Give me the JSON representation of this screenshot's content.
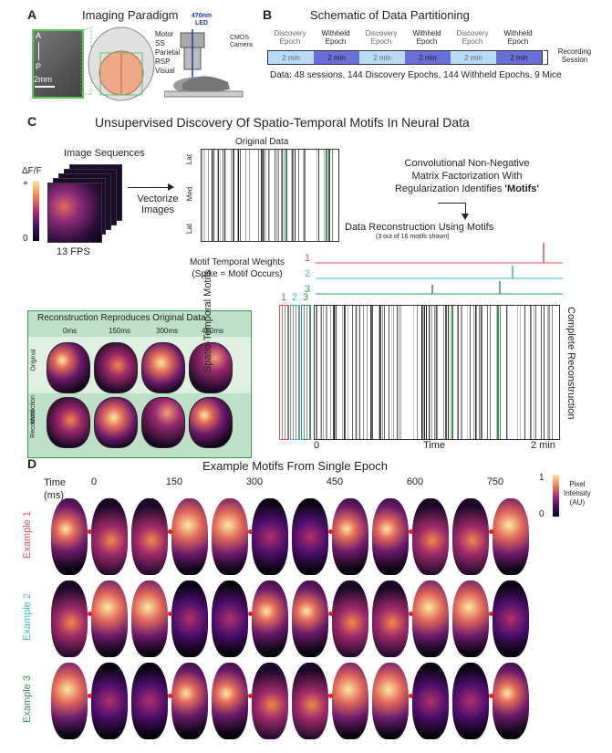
{
  "panelA": {
    "label": "A",
    "title": "Imaging Paradigm",
    "axis_a": "A",
    "axis_p": "P",
    "scale": "2mm",
    "regions": [
      "Motor",
      "SS",
      "Parietal",
      "RSP",
      "Visual"
    ],
    "led": "470nm LED",
    "camera": "CMOS Camera"
  },
  "panelB": {
    "label": "B",
    "title": "Schematic of Data Partitioning",
    "epochs": [
      {
        "name": "Discovery Epoch",
        "dur": "2 min",
        "kind": "discovery"
      },
      {
        "name": "Withheld Epoch",
        "dur": "2 min",
        "kind": "withheld"
      },
      {
        "name": "Discovery Epoch",
        "dur": "2 min",
        "kind": "discovery"
      },
      {
        "name": "Withheld Epoch",
        "dur": "2 min",
        "kind": "withheld"
      },
      {
        "name": "Discovery Epoch",
        "dur": "2 min",
        "kind": "discovery"
      },
      {
        "name": "Withheld Epoch",
        "dur": "2 min",
        "kind": "withheld"
      }
    ],
    "session": "Recording Session",
    "summary": "Data: 48 sessions, 144 Discovery Epochs, 144 Withheld Epochs, 9 Mice",
    "colors": {
      "discovery": "#b8dcf5",
      "withheld": "#6a6fd8"
    }
  },
  "panelC": {
    "label": "C",
    "title": "Unsupervised Discovery Of Spatio-Temporal Motifs In Neural Data",
    "image_sequences": "Image Sequences",
    "df_label": "ΔF/F",
    "plus": "+",
    "zero": "0",
    "fps": "13 FPS",
    "vectorize": "Vectorize Images",
    "original_data": "Original Data",
    "y_lat_top": "Lat",
    "y_med": "Med",
    "y_lat_bottom": "Lat",
    "cnmf_line1": "Convolutional Non-Negative",
    "cnmf_line2": "Matrix Factorization With",
    "cnmf_line3a": "Regularization Identifies ",
    "cnmf_line3b": "'Motifs'",
    "reconstruction_title": "Data Reconstruction Using Motifs",
    "reconstruction_sub": "(3 out of 16 motifs shown)",
    "temporal_weights_1": "Motif Temporal Weights",
    "temporal_weights_2": "(Spike  = Motif Occurs)",
    "motif_ids": [
      "1",
      "2",
      "3"
    ],
    "motif_colors": [
      "#e05050",
      "#3bbccc",
      "#2a9a50"
    ],
    "spatiotemporal": "Spatio-Temporal Motifs",
    "complete": "Complete Reconstruction",
    "time_start": "0",
    "time_label": "Time",
    "time_end": "2 min",
    "repro_title": "Reconstruction Reproduces Original Data",
    "repro_times": [
      "0ms",
      "150ms",
      "300ms",
      "450ms"
    ],
    "row_original": "Original",
    "row_motif_a": "Motif",
    "row_motif_b": "Reconstruction"
  },
  "panelD": {
    "label": "D",
    "title": "Example Motifs From Single Epoch",
    "time_label_a": "Time",
    "time_label_b": "(ms)",
    "times": [
      "0",
      "150",
      "300",
      "450",
      "600",
      "750"
    ],
    "examples": [
      "Example 1",
      "Example 2",
      "Example 3"
    ],
    "example_colors": [
      "#e05050",
      "#3bbccc",
      "#2a9a50"
    ],
    "cbar_max": "1",
    "cbar_min": "0",
    "cbar_label_1": "Pixel",
    "cbar_label_2": "Intensity",
    "cbar_label_3": "(AU)"
  }
}
